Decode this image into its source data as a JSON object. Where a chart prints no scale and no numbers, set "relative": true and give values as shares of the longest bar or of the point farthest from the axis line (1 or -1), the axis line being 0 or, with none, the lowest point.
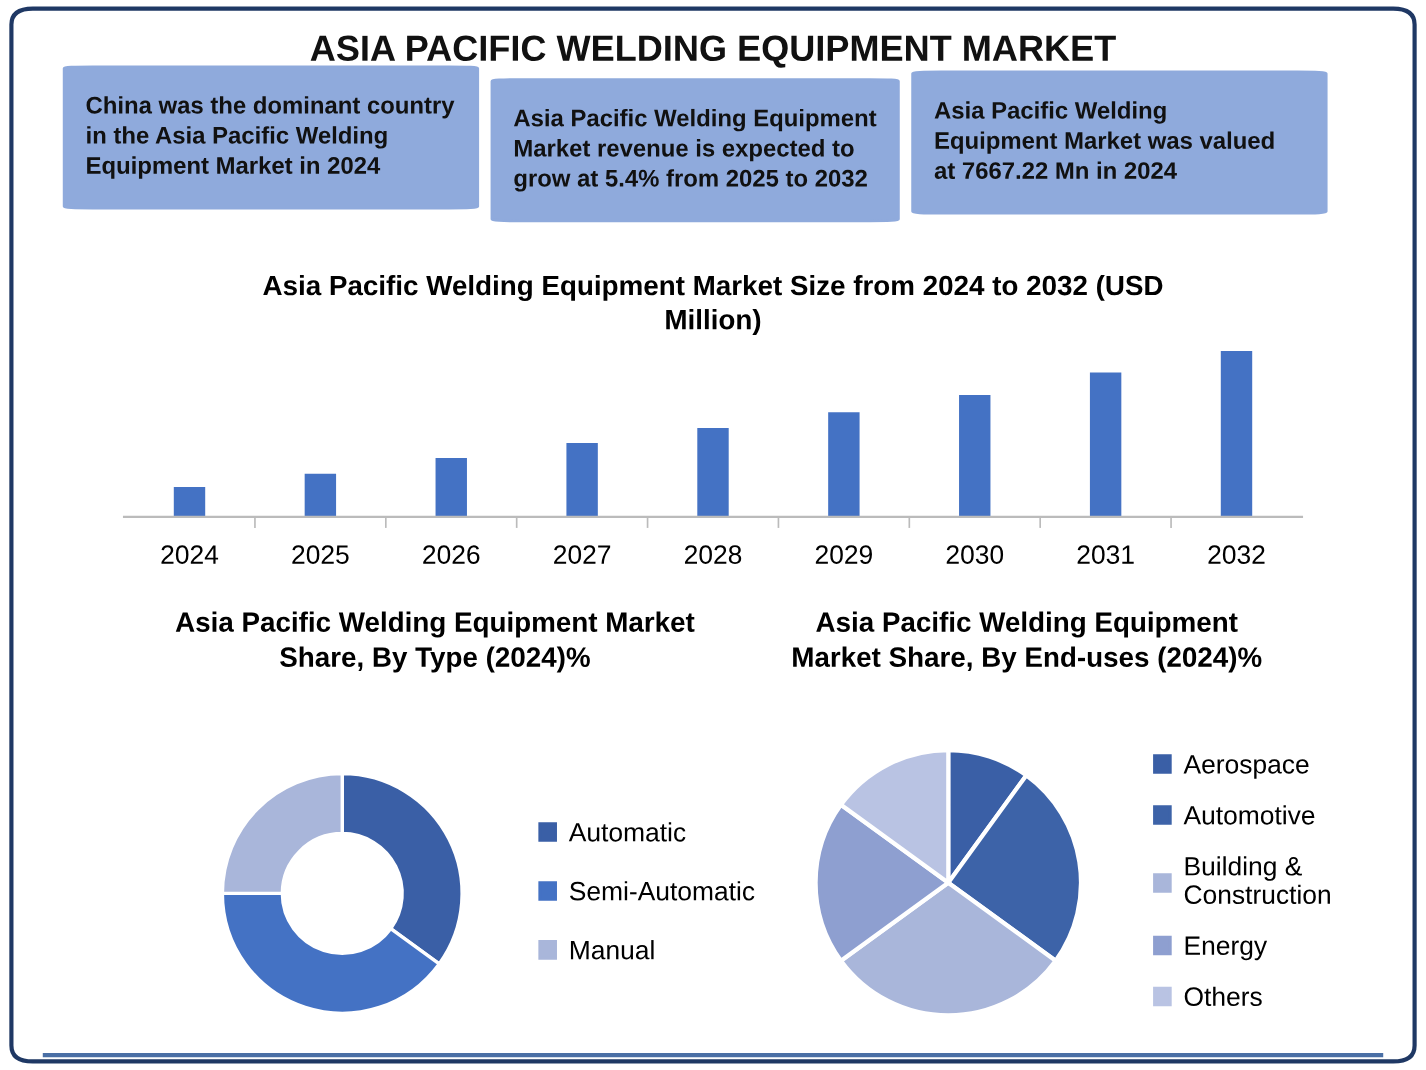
{
  "chart_data": [
    {
      "type": "other",
      "title": "ASIA PACIFIC WELDING EQUIPMENT MARKET",
      "annotations": [
        "China was the dominant country\nin the Asia Pacific Welding\nEquipment Market in 2024",
        "Asia Pacific Welding Equipment\nMarket revenue is expected to\ngrow at 5.4% from 2025 to 2032",
        "Asia Pacific Welding\nEquipment Market was valued\nat 7667.22 Mn in 2024"
      ]
    },
    {
      "type": "bar",
      "title": "Asia Pacific Welding Equipment Market Size from 2024 to 2032 (USD\nMillion)",
      "relative": true,
      "categories": [
        "2024",
        "2025",
        "2026",
        "2027",
        "2028",
        "2029",
        "2030",
        "2031",
        "2032"
      ],
      "values": [
        0.18,
        0.26,
        0.355,
        0.445,
        0.535,
        0.63,
        0.735,
        0.87,
        1.0
      ],
      "color": "#4472c4",
      "grid": false,
      "legend": false
    },
    {
      "type": "donut",
      "title": "Asia Pacific Welding Equipment Market\nShare, By Type (2024)%",
      "categories": [
        "Automatic",
        "Semi-Automatic",
        "Manual"
      ],
      "values": [
        35,
        40,
        25
      ],
      "colors": [
        "#3a5fa6",
        "#4472c4",
        "#a9b6da"
      ],
      "legend": "right"
    },
    {
      "type": "pie",
      "title": "Asia Pacific Welding Equipment\nMarket Share, By End-uses (2024)%",
      "categories": [
        "Aerospace",
        "Automotive",
        "Building &\nConstruction",
        "Energy",
        "Others"
      ],
      "values": [
        10,
        25,
        30,
        20,
        15
      ],
      "colors": [
        "#3a5fa6",
        "#3d63a8",
        "#a9b6da",
        "#8e9fd0",
        "#b9c3e3"
      ],
      "legend": "right"
    }
  ]
}
